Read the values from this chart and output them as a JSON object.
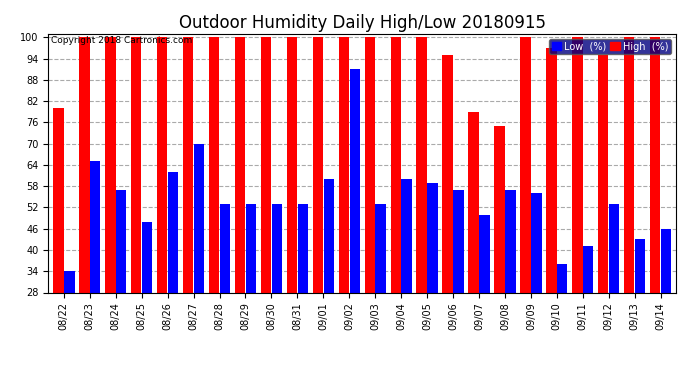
{
  "title": "Outdoor Humidity Daily High/Low 20180915",
  "copyright": "Copyright 2018 Cartronics.com",
  "dates": [
    "08/22",
    "08/23",
    "08/24",
    "08/25",
    "08/26",
    "08/27",
    "08/28",
    "08/29",
    "08/30",
    "08/31",
    "09/01",
    "09/02",
    "09/03",
    "09/04",
    "09/05",
    "09/06",
    "09/07",
    "09/08",
    "09/09",
    "09/10",
    "09/11",
    "09/12",
    "09/13",
    "09/14"
  ],
  "high": [
    80,
    100,
    100,
    100,
    100,
    100,
    100,
    100,
    100,
    100,
    100,
    100,
    100,
    100,
    100,
    95,
    79,
    75,
    100,
    97,
    100,
    95,
    100,
    100
  ],
  "low": [
    34,
    65,
    57,
    48,
    62,
    70,
    53,
    53,
    53,
    53,
    60,
    91,
    53,
    60,
    59,
    57,
    50,
    57,
    56,
    36,
    41,
    53,
    43,
    46
  ],
  "high_color": "#ff0000",
  "low_color": "#0000ff",
  "bg_color": "#ffffff",
  "plot_bg_color": "#ffffff",
  "grid_color": "#aaaaaa",
  "ylim_min": 28,
  "ylim_max": 101,
  "yticks": [
    28,
    34,
    40,
    46,
    52,
    58,
    64,
    70,
    76,
    82,
    88,
    94,
    100
  ],
  "title_fontsize": 12,
  "legend_low_label": "Low  (%)",
  "legend_high_label": "High  (%)"
}
